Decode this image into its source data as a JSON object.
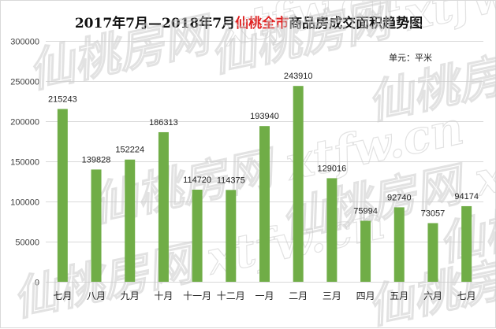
{
  "title": {
    "prefix": "2017年7月—2018年7月",
    "highlight": "仙桃全市",
    "suffix": "商品房成交面积趋势图"
  },
  "unit_label": "单元：平米",
  "watermark": "仙桃房网 xtfw.cn",
  "colors": {
    "bar": "#70ad47",
    "highlight": "#e02020",
    "grid": "#d9d9d9",
    "axis_text": "#404040"
  },
  "chart_data": {
    "type": "bar",
    "title": "2017年7月—2018年7月仙桃全市商品房成交面积趋势图",
    "categories": [
      "七月",
      "八月",
      "九月",
      "十月",
      "十一月",
      "十二月",
      "一月",
      "二月",
      "三月",
      "四月",
      "五月",
      "六月",
      "七月"
    ],
    "values": [
      215243,
      139828,
      152224,
      186313,
      114720,
      114375,
      193940,
      243910,
      129016,
      75994,
      92740,
      73057,
      94174
    ],
    "ylim": [
      0,
      300000
    ],
    "yticks": [
      0,
      50000,
      100000,
      150000,
      200000,
      250000,
      300000
    ],
    "grid": true,
    "data_labels": true,
    "xlabel": "",
    "ylabel": ""
  }
}
